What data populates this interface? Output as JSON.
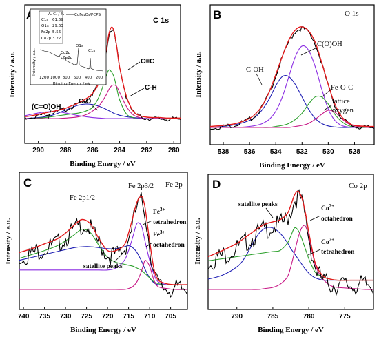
{
  "chart_data": [
    {
      "panel": "A",
      "type": "line",
      "title": "C 1s",
      "xlabel": "Binding Energy / eV",
      "ylabel": "Intensity / a.u.",
      "xlim": [
        291,
        279.5
      ],
      "x_ticks": [
        290,
        288,
        286,
        284,
        282,
        280
      ],
      "ylim": [
        0,
        1.05
      ],
      "grid": false,
      "x": [
        291,
        290.5,
        290,
        289.5,
        289,
        288.5,
        288,
        287.5,
        287,
        286.5,
        286,
        285.5,
        285,
        284.8,
        284.6,
        284.4,
        284.2,
        284,
        283.5,
        283,
        282.5,
        282,
        281.5,
        281,
        280.5,
        280,
        279.5
      ],
      "series": [
        {
          "color": "#000000",
          "values": [
            0.02,
            0.03,
            0.045,
            0.06,
            0.075,
            0.09,
            0.11,
            0.14,
            0.17,
            0.21,
            0.27,
            0.4,
            0.72,
            0.9,
            0.98,
            0.93,
            0.76,
            0.55,
            0.24,
            0.08,
            0.03,
            0.015,
            0.01,
            0.01,
            0.005,
            0.005,
            0.005
          ]
        },
        {
          "color": "#e41a1c",
          "values": [
            0.02,
            0.03,
            0.045,
            0.06,
            0.075,
            0.09,
            0.11,
            0.14,
            0.17,
            0.21,
            0.27,
            0.4,
            0.72,
            0.9,
            0.98,
            0.93,
            0.76,
            0.55,
            0.24,
            0.08,
            0.03,
            0.015,
            0.01,
            0.01,
            0.005,
            0.005,
            0.005
          ]
        },
        {
          "color": "#1f1fb4",
          "values": [
            0,
            0.005,
            0.01,
            0.02,
            0.035,
            0.06,
            0.09,
            0.12,
            0.145,
            0.155,
            0.15,
            0.13,
            0.1,
            0.085,
            0.07,
            0.055,
            0.045,
            0.035,
            0.02,
            0.01,
            0.005,
            0,
            0,
            0,
            0,
            0,
            0
          ]
        },
        {
          "color": "#2ca02c",
          "values": [
            0,
            0,
            0.005,
            0.01,
            0.02,
            0.03,
            0.04,
            0.05,
            0.06,
            0.08,
            0.12,
            0.24,
            0.45,
            0.52,
            0.5,
            0.44,
            0.32,
            0.2,
            0.05,
            0.01,
            0,
            0,
            0,
            0,
            0,
            0,
            0
          ]
        },
        {
          "color": "#c71585",
          "values": [
            0,
            0,
            0,
            0,
            0,
            0,
            0.005,
            0.01,
            0.02,
            0.04,
            0.08,
            0.14,
            0.25,
            0.31,
            0.35,
            0.36,
            0.34,
            0.28,
            0.13,
            0.04,
            0.01,
            0,
            0,
            0,
            0,
            0,
            0
          ]
        },
        {
          "color": "#8a2be2",
          "values": [
            0.03,
            0.045,
            0.06,
            0.07,
            0.075,
            0.07,
            0.06,
            0.045,
            0.03,
            0.02,
            0.01,
            0.005,
            0,
            0,
            0,
            0,
            0,
            0,
            0,
            0,
            0,
            0,
            0,
            0,
            0,
            0,
            0
          ]
        }
      ],
      "annotations": [
        "C=C",
        "C-H",
        "C-O",
        "(C=O)OH"
      ],
      "inset": {
        "legend": "CoFe2O4/PCPS",
        "table_header": "A. C. / %",
        "rows": [
          {
            "label": "C1s",
            "value": "61.69"
          },
          {
            "label": "O1s",
            "value": "29.63"
          },
          {
            "label": "Fe2p",
            "value": "5.56"
          },
          {
            "label": "Co2p",
            "value": "3.22"
          }
        ],
        "ylabel": "Intensity / a.u.",
        "xlabel": "Binding Energy / eV",
        "x_ticks": [
          1200,
          1000,
          800,
          600,
          400,
          200
        ],
        "peak_labels": [
          "Co2p",
          "Fe2p",
          "O1s",
          "C1s"
        ]
      }
    },
    {
      "panel": "B",
      "type": "line",
      "title": "O 1s",
      "xlabel": "Binding Energy / eV",
      "ylabel": "Intensity / a.u.",
      "xlim": [
        539,
        526.5
      ],
      "x_ticks": [
        538,
        536,
        534,
        532,
        530,
        528
      ],
      "ylim": [
        0,
        1.05
      ],
      "grid": false,
      "x": [
        539,
        538,
        537,
        536,
        535.5,
        535,
        534.5,
        534,
        533.5,
        533,
        532.5,
        532,
        531.5,
        531,
        530.5,
        530,
        529.5,
        529,
        528.5,
        528,
        527,
        526.5
      ],
      "series": [
        {
          "color": "#000000",
          "values": [
            0.01,
            0.02,
            0.04,
            0.09,
            0.14,
            0.22,
            0.35,
            0.52,
            0.7,
            0.86,
            0.96,
            0.99,
            0.95,
            0.84,
            0.64,
            0.42,
            0.23,
            0.11,
            0.05,
            0.02,
            0.01,
            0.01
          ]
        },
        {
          "color": "#e41a1c",
          "values": [
            0.01,
            0.02,
            0.04,
            0.09,
            0.14,
            0.22,
            0.35,
            0.52,
            0.7,
            0.86,
            0.96,
            0.99,
            0.95,
            0.84,
            0.64,
            0.42,
            0.23,
            0.11,
            0.05,
            0.02,
            0.01,
            0.01
          ]
        },
        {
          "color": "#1f1fb4",
          "values": [
            0,
            0.01,
            0.03,
            0.07,
            0.11,
            0.18,
            0.28,
            0.41,
            0.5,
            0.5,
            0.42,
            0.3,
            0.18,
            0.09,
            0.04,
            0.015,
            0.005,
            0,
            0,
            0,
            0,
            0
          ]
        },
        {
          "color": "#8a2be2",
          "values": [
            0,
            0,
            0,
            0.01,
            0.02,
            0.04,
            0.08,
            0.16,
            0.3,
            0.5,
            0.7,
            0.8,
            0.76,
            0.6,
            0.38,
            0.18,
            0.07,
            0.02,
            0.005,
            0,
            0,
            0
          ]
        },
        {
          "color": "#2ca02c",
          "values": [
            0,
            0,
            0,
            0,
            0,
            0,
            0,
            0.01,
            0.02,
            0.04,
            0.08,
            0.14,
            0.23,
            0.3,
            0.3,
            0.23,
            0.13,
            0.06,
            0.02,
            0.005,
            0,
            0
          ]
        },
        {
          "color": "#c71585",
          "values": [
            0,
            0,
            0,
            0,
            0,
            0,
            0,
            0,
            0,
            0,
            0.01,
            0.02,
            0.04,
            0.08,
            0.13,
            0.17,
            0.15,
            0.09,
            0.04,
            0.015,
            0,
            0
          ]
        }
      ],
      "annotations": [
        "C(O)OH",
        "C-OH",
        "Fe-O-C",
        "lattice",
        "oxygen"
      ]
    },
    {
      "panel": "C",
      "type": "line",
      "title": "Fe 2p",
      "xlabel": "Binding Energy / eV",
      "ylabel": "Intensity / a.u.",
      "xlim": [
        741,
        701
      ],
      "x_ticks": [
        740,
        735,
        730,
        725,
        720,
        715,
        710,
        705
      ],
      "ylim": [
        0,
        1.05
      ],
      "grid": false,
      "x": [
        741,
        738,
        735,
        732,
        730,
        728,
        726,
        724,
        722,
        720,
        718,
        716,
        715,
        714,
        713,
        712,
        711.5,
        711,
        710,
        709,
        708,
        706,
        704,
        701
      ],
      "series": [
        {
          "color": "#000000",
          "values": [
            0.38,
            0.42,
            0.47,
            0.52,
            0.58,
            0.66,
            0.72,
            0.67,
            0.52,
            0.4,
            0.4,
            0.46,
            0.58,
            0.74,
            0.9,
            0.96,
            0.92,
            0.82,
            0.5,
            0.22,
            0.1,
            0.06,
            0.05,
            0.05
          ]
        },
        {
          "color": "#e41a1c",
          "values": [
            0.38,
            0.42,
            0.47,
            0.52,
            0.58,
            0.66,
            0.72,
            0.67,
            0.52,
            0.4,
            0.4,
            0.46,
            0.58,
            0.74,
            0.9,
            0.96,
            0.92,
            0.82,
            0.5,
            0.22,
            0.1,
            0.06,
            0.05,
            0.05
          ]
        },
        {
          "color": "#1f1fb4",
          "values": [
            0.3,
            0.33,
            0.36,
            0.39,
            0.41,
            0.43,
            0.44,
            0.44,
            0.43,
            0.42,
            0.42,
            0.44,
            0.45,
            0.43,
            0.38,
            0.3,
            0.25,
            0.2,
            0.12,
            0.07,
            0.05,
            0.05,
            0.05,
            0.05
          ]
        },
        {
          "color": "#2ca02c",
          "values": [
            0.32,
            0.36,
            0.4,
            0.45,
            0.5,
            0.56,
            0.62,
            0.58,
            0.45,
            0.33,
            0.28,
            0.26,
            0.25,
            0.24,
            0.22,
            0.2,
            0.18,
            0.16,
            0.12,
            0.08,
            0.06,
            0.05,
            0.05,
            0.05
          ]
        },
        {
          "color": "#8a2be2",
          "values": [
            0.2,
            0.2,
            0.2,
            0.2,
            0.2,
            0.2,
            0.2,
            0.2,
            0.2,
            0.2,
            0.22,
            0.3,
            0.4,
            0.54,
            0.68,
            0.66,
            0.58,
            0.48,
            0.3,
            0.16,
            0.08,
            0.05,
            0.05,
            0.05
          ]
        },
        {
          "color": "#c71585",
          "values": [
            0,
            0,
            0,
            0,
            0,
            0,
            0,
            0,
            0,
            0,
            0,
            0,
            0.01,
            0.03,
            0.08,
            0.18,
            0.25,
            0.3,
            0.24,
            0.1,
            0.03,
            0.01,
            0,
            0
          ]
        }
      ],
      "annotations": [
        "Fe 2p1/2",
        "Fe 2p3/2",
        "Fe3+ tetrahedron",
        "Fe3+ octahedron",
        "satellite peaks"
      ]
    },
    {
      "panel": "D",
      "type": "line",
      "title": "Co 2p",
      "xlabel": "Binding Energy / eV",
      "ylabel": "Intensity / a.u.",
      "xlim": [
        794,
        771
      ],
      "x_ticks": [
        790,
        785,
        780,
        775
      ],
      "ylim": [
        0,
        1.05
      ],
      "grid": false,
      "x": [
        794,
        792,
        790,
        789,
        788,
        787,
        786,
        785,
        784,
        783,
        782.5,
        782,
        781.5,
        781,
        780.5,
        780,
        779.5,
        779,
        778,
        777,
        776,
        774,
        772,
        771
      ],
      "series": [
        {
          "color": "#000000",
          "values": [
            0.32,
            0.38,
            0.45,
            0.5,
            0.55,
            0.6,
            0.64,
            0.66,
            0.68,
            0.74,
            0.82,
            0.92,
            0.96,
            0.9,
            0.76,
            0.56,
            0.38,
            0.24,
            0.13,
            0.1,
            0.09,
            0.09,
            0.09,
            0.09
          ]
        },
        {
          "color": "#e41a1c",
          "values": [
            0.32,
            0.38,
            0.45,
            0.5,
            0.55,
            0.6,
            0.64,
            0.66,
            0.68,
            0.74,
            0.82,
            0.92,
            0.96,
            0.9,
            0.76,
            0.56,
            0.38,
            0.24,
            0.13,
            0.1,
            0.09,
            0.09,
            0.09,
            0.09
          ]
        },
        {
          "color": "#1f1fb4",
          "values": [
            0.1,
            0.14,
            0.22,
            0.3,
            0.42,
            0.54,
            0.6,
            0.6,
            0.55,
            0.46,
            0.4,
            0.35,
            0.3,
            0.25,
            0.2,
            0.16,
            0.13,
            0.11,
            0.09,
            0.09,
            0.09,
            0.09,
            0.09,
            0.09
          ]
        },
        {
          "color": "#2ca02c",
          "values": [
            0.28,
            0.3,
            0.32,
            0.33,
            0.34,
            0.35,
            0.36,
            0.37,
            0.38,
            0.45,
            0.52,
            0.6,
            0.58,
            0.5,
            0.4,
            0.3,
            0.22,
            0.16,
            0.12,
            0.1,
            0.09,
            0.09,
            0.09,
            0.09
          ]
        },
        {
          "color": "#c71585",
          "values": [
            0,
            0,
            0,
            0,
            0,
            0,
            0.01,
            0.02,
            0.05,
            0.12,
            0.22,
            0.36,
            0.5,
            0.6,
            0.62,
            0.52,
            0.36,
            0.22,
            0.1,
            0.04,
            0.02,
            0.01,
            0,
            0
          ]
        }
      ],
      "annotations": [
        "satellite peaks",
        "Co2+ octahedron",
        "Co2+ tetrahedron"
      ]
    }
  ],
  "labels": {
    "a_letter": "A",
    "a_title": "C 1s",
    "a_xlabel": "Binding Energy / eV",
    "a_ylabel": "Intensity / a.u.",
    "a_ann_cc": "C=C",
    "a_ann_ch": "C-H",
    "a_ann_co": "C-O",
    "a_ann_cooh": "(C=O)OH",
    "inset_legend": "CoFe₂O₄/PCPS",
    "inset_header": "A. C. / %",
    "inset_ylabel": "Intensity / a.u.",
    "inset_xlabel": "Binding Energy / eV",
    "inset_co2p": "Co2p",
    "inset_fe2p": "Fe2p",
    "inset_o1s": "O1s",
    "inset_c1s": "C1s",
    "b_letter": "B",
    "b_title": "O 1s",
    "b_xlabel": "Binding Energy / eV",
    "b_ylabel": "Intensity / a.u.",
    "b_ann_cooh": "C(O)OH",
    "b_ann_coh": "C-OH",
    "b_ann_feoc": "Fe-O-C",
    "b_ann_lattice": "lattice",
    "b_ann_oxygen": "oxygen",
    "c_letter": "C",
    "c_title": "Fe 2p",
    "c_xlabel": "Binding Energy / eV",
    "c_ylabel": "Intensity / a.u.",
    "c_ann_p12": "Fe 2p1/2",
    "c_ann_p32": "Fe 2p3/2",
    "c_ann_fe3_a": "Fe",
    "c_ann_fe3_a_sup": "3+",
    "c_ann_tetra": "tetrahedron",
    "c_ann_fe3_b": "Fe",
    "c_ann_fe3_b_sup": "3+",
    "c_ann_octa": "octahedron",
    "c_ann_sat": "satellite peaks",
    "d_letter": "D",
    "d_title": "Co 2p",
    "d_xlabel": "Binding Energy / eV",
    "d_ylabel": "Intensity / a.u.",
    "d_ann_sat": "satellite peaks",
    "d_ann_co2_a": "Co",
    "d_ann_co2_a_sup": "2+",
    "d_ann_octa": "octahedron",
    "d_ann_co2_b": "Co",
    "d_ann_co2_b_sup": "2+",
    "d_ann_tetra": "tetrahedron"
  }
}
